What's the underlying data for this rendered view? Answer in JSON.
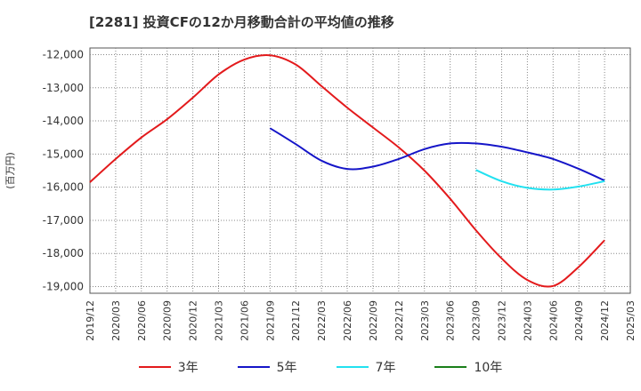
{
  "title": "[2281]  投資CFの12か月移動合計の平均値の推移",
  "chart_data": {
    "type": "line",
    "ylabel": "(百万円)",
    "xlabel": "",
    "ylim": [
      -19200,
      -11800
    ],
    "yticks": [
      -12000,
      -13000,
      -14000,
      -15000,
      -16000,
      -17000,
      -18000,
      -19000
    ],
    "ytick_labels": [
      "-12,000",
      "-13,000",
      "-14,000",
      "-15,000",
      "-16,000",
      "-17,000",
      "-18,000",
      "-19,000"
    ],
    "xtick_labels": [
      "2019/12",
      "2020/03",
      "2020/06",
      "2020/09",
      "2020/12",
      "2021/03",
      "2021/06",
      "2021/09",
      "2021/12",
      "2022/03",
      "2022/06",
      "2022/09",
      "2022/12",
      "2023/03",
      "2023/06",
      "2023/09",
      "2023/12",
      "2024/03",
      "2024/06",
      "2024/09",
      "2024/12",
      "2025/03"
    ],
    "x": [
      "2019/12",
      "2020/03",
      "2020/06",
      "2020/09",
      "2020/12",
      "2021/03",
      "2021/06",
      "2021/09",
      "2021/12",
      "2022/03",
      "2022/06",
      "2022/09",
      "2022/12",
      "2023/03",
      "2023/06",
      "2023/09",
      "2023/12",
      "2024/03",
      "2024/06",
      "2024/09",
      "2024/12"
    ],
    "series": [
      {
        "name": "3年",
        "color": "#e31a1c",
        "values": [
          -15850,
          -15150,
          -14500,
          -13950,
          -13300,
          -12600,
          -12150,
          -12020,
          -12300,
          -12950,
          -13600,
          -14200,
          -14800,
          -15500,
          -16350,
          -17300,
          -18150,
          -18800,
          -18980,
          -18400,
          -17600
        ]
      },
      {
        "name": "5年",
        "color": "#1515c8",
        "values": [
          null,
          null,
          null,
          null,
          null,
          null,
          null,
          -14220,
          -14700,
          -15200,
          -15450,
          -15380,
          -15150,
          -14850,
          -14680,
          -14680,
          -14780,
          -14950,
          -15150,
          -15450,
          -15800
        ]
      },
      {
        "name": "7年",
        "color": "#22e1f0",
        "values": [
          null,
          null,
          null,
          null,
          null,
          null,
          null,
          null,
          null,
          null,
          null,
          null,
          null,
          null,
          null,
          -15480,
          -15820,
          -16020,
          -16070,
          -15980,
          -15820
        ]
      },
      {
        "name": "10年",
        "color": "#1a7f1a",
        "values": [
          null,
          null,
          null,
          null,
          null,
          null,
          null,
          null,
          null,
          null,
          null,
          null,
          null,
          null,
          null,
          null,
          null,
          null,
          null,
          null,
          null
        ]
      }
    ],
    "grid": true,
    "legend_position": "bottom"
  }
}
